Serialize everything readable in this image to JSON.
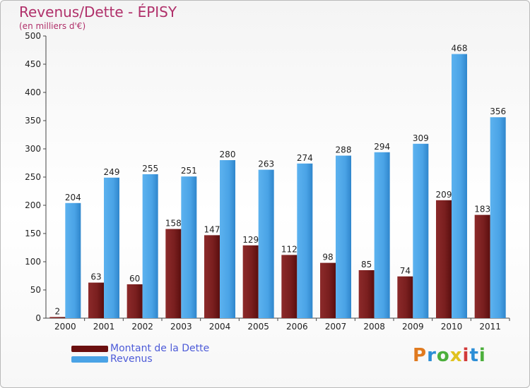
{
  "header": {
    "title": "Revenus/Dette - ÉPISY",
    "subtitle": "(en milliers d'€)"
  },
  "chart_data": {
    "type": "bar",
    "categories": [
      "2000",
      "2001",
      "2002",
      "2003",
      "2004",
      "2005",
      "2006",
      "2007",
      "2008",
      "2009",
      "2010",
      "2011"
    ],
    "series": [
      {
        "name": "Montant de la Dette",
        "values": [
          2,
          63,
          60,
          158,
          147,
          129,
          112,
          98,
          85,
          74,
          209,
          183
        ],
        "color": "#7a1f1f"
      },
      {
        "name": "Revenus",
        "values": [
          204,
          249,
          255,
          251,
          280,
          263,
          274,
          288,
          294,
          309,
          468,
          356
        ],
        "color": "#4aa3e6"
      }
    ],
    "ylim": [
      0,
      500
    ],
    "yticks": [
      0,
      50,
      100,
      150,
      200,
      250,
      300,
      350,
      400,
      450,
      500
    ],
    "grid": false,
    "legend": "bottom-left"
  },
  "legend": {
    "items": [
      {
        "label": "Montant de la Dette",
        "color": "#6b0f0f"
      },
      {
        "label": "Revenus",
        "color": "#4aa3e6"
      }
    ]
  },
  "logo": {
    "text": "Proxiti",
    "colors": [
      "#e07a1f",
      "#2c8ed6",
      "#4caf3c",
      "#e0c21f",
      "#d23a3a",
      "#2c8ed6",
      "#4caf3c"
    ]
  }
}
